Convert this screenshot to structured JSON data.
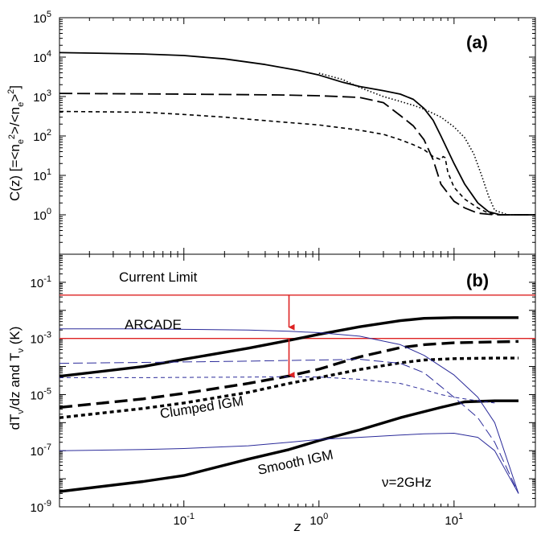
{
  "chart_data": [
    {
      "type": "line",
      "panel_label": "(a)",
      "ylabel": "C(z)  [=<n_e^2>/<n_e>^2]",
      "x_scale": "log",
      "y_scale": "log",
      "xlim": [
        0.012,
        40
      ],
      "ylim": [
        0.1,
        100000.0
      ],
      "grid": false,
      "yticks": [
        {
          "base": "10",
          "exp": "0",
          "value": 1
        },
        {
          "base": "10",
          "exp": "1",
          "value": 10
        },
        {
          "base": "10",
          "exp": "2",
          "value": 100
        },
        {
          "base": "10",
          "exp": "3",
          "value": 1000
        },
        {
          "base": "10",
          "exp": "4",
          "value": 10000
        },
        {
          "base": "10",
          "exp": "5",
          "value": 100000
        }
      ],
      "series": [
        {
          "style": "solid",
          "x": [
            0.012,
            0.05,
            0.1,
            0.2,
            0.4,
            0.7,
            1,
            1.5,
            2,
            3,
            4,
            5,
            6,
            7,
            8,
            10,
            12,
            15,
            18,
            22,
            30,
            40
          ],
          "y": [
            13000,
            12000,
            11000,
            9000,
            6500,
            4600,
            3500,
            2300,
            1800,
            1400,
            1150,
            850,
            500,
            250,
            100,
            20,
            6,
            2,
            1.2,
            1,
            1,
            1
          ]
        },
        {
          "style": "dotted",
          "x": [
            1,
            1.5,
            2,
            3,
            4,
            5,
            6,
            8,
            10,
            12,
            14,
            16,
            18,
            20,
            25,
            30,
            40
          ],
          "y": [
            3900,
            2700,
            1700,
            1000,
            750,
            600,
            480,
            300,
            170,
            90,
            35,
            10,
            3,
            1.3,
            1,
            1,
            1
          ]
        },
        {
          "style": "long-dash",
          "x": [
            0.012,
            0.1,
            0.5,
            1,
            2,
            3,
            4,
            5,
            6,
            7,
            8,
            10,
            12,
            15,
            20,
            30,
            40
          ],
          "y": [
            1200,
            1150,
            1100,
            1050,
            950,
            700,
            330,
            180,
            80,
            25,
            6,
            2.2,
            1.5,
            1.1,
            1,
            1,
            1
          ]
        },
        {
          "style": "short-dash",
          "x": [
            0.012,
            0.05,
            0.1,
            0.2,
            0.5,
            1,
            2,
            3,
            4,
            5,
            6,
            7,
            8,
            8.3,
            8.6,
            9,
            10,
            12,
            15,
            18,
            22,
            30,
            40
          ],
          "y": [
            420,
            400,
            350,
            300,
            230,
            190,
            140,
            110,
            80,
            60,
            45,
            30,
            25,
            30,
            28,
            12,
            5,
            2.5,
            1.5,
            1.1,
            1,
            1,
            1
          ]
        }
      ]
    },
    {
      "type": "line",
      "panel_label": "(b)",
      "xlabel": "z",
      "ylabel": "dT_ν/dz and T_ν (K)",
      "x_scale": "log",
      "y_scale": "log",
      "xlim": [
        0.012,
        40
      ],
      "ylim": [
        1e-09,
        1
      ],
      "grid": false,
      "xticks": [
        {
          "base": "10",
          "exp": "-1",
          "value": 0.1
        },
        {
          "base": "10",
          "exp": "0",
          "value": 1
        },
        {
          "base": "10",
          "exp": "1",
          "value": 10
        }
      ],
      "yticks": [
        {
          "base": "10",
          "exp": "-9",
          "value": 1e-09
        },
        {
          "base": "10",
          "exp": "-7",
          "value": 1e-07
        },
        {
          "base": "10",
          "exp": "-5",
          "value": 1e-05
        },
        {
          "base": "10",
          "exp": "-3",
          "value": 0.001
        },
        {
          "base": "10",
          "exp": "-1",
          "value": 0.1
        }
      ],
      "reference_lines": [
        {
          "label": "Current Limit",
          "y": 0.035,
          "color": "#dd2222"
        },
        {
          "label": "ARCADE",
          "y": 0.001,
          "color": "#dd2222"
        }
      ],
      "arrows": [
        {
          "x": 0.6,
          "y_from": 0.035,
          "y_to": 0.0025,
          "color": "#dd2222"
        },
        {
          "x": 0.6,
          "y_from": 0.001,
          "y_to": 5e-05,
          "color": "#dd2222"
        }
      ],
      "annotations": [
        "Clumped IGM",
        "Smooth IGM",
        "ν=2GHz"
      ],
      "series": [
        {
          "style": "thick-solid",
          "color": "#000000",
          "x": [
            0.012,
            0.05,
            0.1,
            0.3,
            0.6,
            1,
            2,
            4,
            6,
            10,
            20,
            30
          ],
          "y": [
            4.5e-05,
            0.0001,
            0.00018,
            0.00045,
            0.00085,
            0.0014,
            0.0026,
            0.0043,
            0.0052,
            0.0055,
            0.0055,
            0.0055
          ]
        },
        {
          "style": "thick-long-dash",
          "color": "#000000",
          "x": [
            0.012,
            0.05,
            0.1,
            0.3,
            0.6,
            1,
            2,
            4,
            6,
            10,
            20,
            30
          ],
          "y": [
            3.5e-06,
            7e-06,
            1.1e-05,
            2.5e-05,
            4.6e-05,
            8e-05,
            0.00022,
            0.00047,
            0.0006,
            0.0007,
            0.00075,
            0.00078
          ]
        },
        {
          "style": "thick-short-dash",
          "color": "#000000",
          "x": [
            0.012,
            0.05,
            0.1,
            0.3,
            0.6,
            1,
            2,
            4,
            6,
            10,
            20,
            30
          ],
          "y": [
            1.5e-06,
            3.2e-06,
            5e-06,
            1.2e-05,
            2.5e-05,
            4e-05,
            7.8e-05,
            0.000135,
            0.00017,
            0.00019,
            0.0002,
            0.0002
          ]
        },
        {
          "style": "thick-solid",
          "color": "#000000",
          "x": [
            0.012,
            0.05,
            0.1,
            0.3,
            0.6,
            1,
            2,
            4,
            8,
            12,
            20,
            30
          ],
          "y": [
            3.5e-09,
            8e-09,
            1.3e-08,
            5e-08,
            1.1e-07,
            2.3e-07,
            5.5e-07,
            1.5e-06,
            3.5e-06,
            5.5e-06,
            6e-06,
            6e-06
          ]
        },
        {
          "style": "thin-solid",
          "color": "#2b2b9a",
          "x": [
            0.012,
            0.05,
            0.1,
            0.3,
            0.6,
            1,
            2,
            4,
            6,
            10,
            15,
            20,
            30
          ],
          "y": [
            0.0022,
            0.0022,
            0.0021,
            0.002,
            0.0018,
            0.0016,
            0.0012,
            0.0006,
            0.00025,
            5e-05,
            8e-06,
            1e-06,
            3e-09
          ]
        },
        {
          "style": "thin-long-dash",
          "color": "#2b2b9a",
          "x": [
            0.012,
            0.05,
            0.1,
            0.3,
            0.6,
            1,
            2,
            4,
            6,
            10,
            15,
            20,
            30
          ],
          "y": [
            0.00013,
            0.00014,
            0.000145,
            0.000155,
            0.000165,
            0.00017,
            0.00018,
            0.00013,
            6e-05,
            8e-06,
            1.5e-06,
            2e-07,
            3e-09
          ]
        },
        {
          "style": "thin-short-dash",
          "color": "#2b2b9a",
          "x": [
            0.012,
            0.05,
            0.1,
            0.3,
            0.6,
            1,
            2,
            4,
            6,
            8,
            10,
            15,
            20
          ],
          "y": [
            4e-05,
            4e-05,
            4.1e-05,
            4.2e-05,
            4.3e-05,
            4.2e-05,
            3.5e-05,
            2.5e-05,
            1.5e-05,
            1e-05,
            8e-06,
            6e-06,
            5e-06
          ]
        },
        {
          "style": "thin-solid",
          "color": "#2b2b9a",
          "x": [
            0.012,
            0.05,
            0.1,
            0.3,
            0.6,
            1,
            2,
            4,
            6,
            10,
            15,
            20,
            30
          ],
          "y": [
            1e-07,
            1.1e-07,
            1.2e-07,
            1.5e-07,
            2e-07,
            2.5e-07,
            3e-07,
            3.6e-07,
            4e-07,
            4.2e-07,
            3e-07,
            1e-07,
            3e-09
          ]
        }
      ]
    }
  ]
}
